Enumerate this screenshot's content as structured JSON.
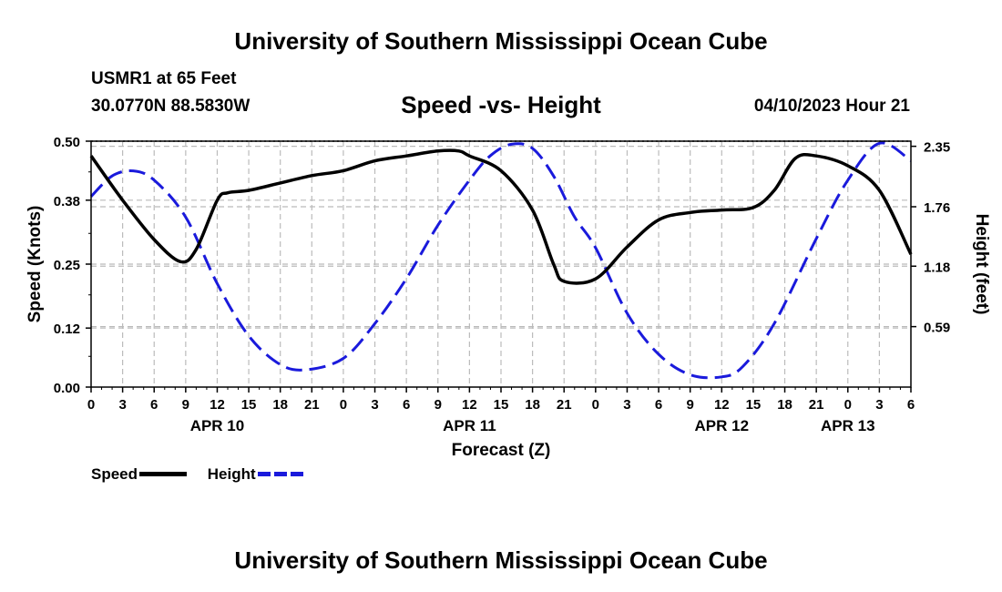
{
  "header": {
    "title": "University of Southern Mississippi Ocean Cube",
    "station": "USMR1 at 65 Feet",
    "coordinates": "30.0770N  88.5830W",
    "subtitle": "Speed -vs- Height",
    "datetime": "04/10/2023 Hour 21"
  },
  "footer": {
    "title": "University of Southern Mississippi Ocean Cube"
  },
  "legend": {
    "speed_label": "Speed",
    "height_label": "Height"
  },
  "colors": {
    "speed": "#000000",
    "height": "#1a1adc",
    "grid": "#bbbbbb",
    "frame": "#000000"
  },
  "chart_data": {
    "type": "line",
    "title": "Speed -vs- Height",
    "xlabel": "Forecast (Z)",
    "ylabel": "Speed (Knots)",
    "y2label": "Height (feet)",
    "x_range_hours": [
      0,
      78
    ],
    "x_tick_hours": [
      0,
      3,
      6,
      9,
      12,
      15,
      18,
      21,
      24,
      27,
      30,
      33,
      36,
      39,
      42,
      45,
      48,
      51,
      54,
      57,
      60,
      63,
      66,
      69,
      72,
      75,
      78
    ],
    "x_tick_labels": [
      "0",
      "3",
      "6",
      "9",
      "12",
      "15",
      "18",
      "21",
      "0",
      "3",
      "6",
      "9",
      "12",
      "15",
      "18",
      "21",
      "0",
      "3",
      "6",
      "9",
      "12",
      "15",
      "18",
      "21",
      "0",
      "3",
      "6"
    ],
    "date_labels": [
      {
        "text": "APR 10",
        "hour": 12
      },
      {
        "text": "APR 11",
        "hour": 36
      },
      {
        "text": "APR 12",
        "hour": 60
      },
      {
        "text": "APR 13",
        "hour": 72
      }
    ],
    "ylim": [
      0,
      0.5
    ],
    "y_ticks": [
      0.0,
      0.12,
      0.25,
      0.38,
      0.5
    ],
    "y_tick_labels": [
      "0.00",
      "0.12",
      "0.25",
      "0.38",
      "0.50"
    ],
    "y2lim": [
      0,
      2.4
    ],
    "y2_ticks": [
      0.59,
      1.18,
      1.76,
      2.35
    ],
    "y2_tick_labels": [
      "0.59",
      "1.18",
      "1.76",
      "2.35"
    ],
    "series": [
      {
        "name": "Speed",
        "axis": "left",
        "style": "solid",
        "x": [
          0,
          3,
          6,
          8.5,
          10,
          12,
          13,
          15,
          18,
          21,
          24,
          27,
          30,
          33,
          35,
          36,
          39,
          42,
          44,
          45,
          48,
          51,
          54,
          57,
          60,
          63,
          65,
          67,
          69,
          72,
          75,
          78
        ],
        "values": [
          0.47,
          0.38,
          0.3,
          0.255,
          0.28,
          0.38,
          0.395,
          0.4,
          0.415,
          0.43,
          0.44,
          0.46,
          0.47,
          0.48,
          0.48,
          0.47,
          0.44,
          0.36,
          0.25,
          0.215,
          0.22,
          0.285,
          0.34,
          0.355,
          0.36,
          0.365,
          0.4,
          0.465,
          0.47,
          0.45,
          0.4,
          0.27
        ]
      },
      {
        "name": "Height",
        "axis": "right",
        "style": "dashed",
        "x": [
          0,
          2,
          4,
          6,
          9,
          12,
          15,
          18,
          20.5,
          24,
          27,
          30,
          33,
          36,
          38,
          40,
          42,
          44,
          46,
          48,
          51,
          54,
          57,
          60,
          62,
          65,
          69,
          72,
          75,
          78
        ],
        "values": [
          1.86,
          2.06,
          2.11,
          2.02,
          1.66,
          1.01,
          0.5,
          0.22,
          0.17,
          0.28,
          0.62,
          1.06,
          1.58,
          2.02,
          2.26,
          2.37,
          2.33,
          2.06,
          1.66,
          1.36,
          0.72,
          0.32,
          0.12,
          0.1,
          0.2,
          0.62,
          1.45,
          2.02,
          2.38,
          2.21
        ]
      }
    ]
  }
}
